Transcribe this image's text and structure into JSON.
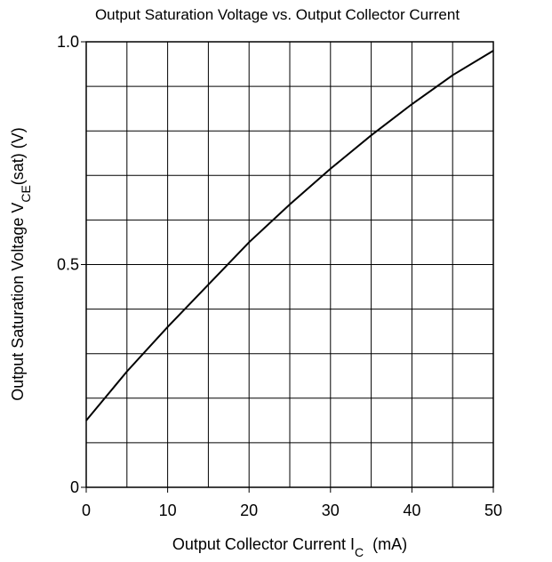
{
  "chart_data": {
    "type": "line",
    "title": "Output Saturation Voltage vs. Output Collector Current",
    "xlabel": {
      "text": "Output Collector Current  I",
      "sub": "C",
      "unit": "(mA)"
    },
    "ylabel": {
      "text": "Output Saturation Voltage  V",
      "sub": "CE",
      "unit": "(sat)  (V)"
    },
    "x": [
      0,
      5,
      10,
      15,
      20,
      25,
      30,
      35,
      40,
      45,
      50
    ],
    "series": [
      {
        "color": "#000000",
        "values": [
          0.15,
          0.26,
          0.36,
          0.455,
          0.55,
          0.635,
          0.715,
          0.79,
          0.86,
          0.925,
          0.98
        ]
      }
    ],
    "xlim": [
      0,
      50
    ],
    "ylim": [
      0,
      1
    ],
    "xticks": [
      0,
      10,
      20,
      30,
      40,
      50
    ],
    "yticks": [
      0,
      0.5,
      {
        "value": 1,
        "label": "1.0"
      }
    ],
    "xgrid": [
      5,
      10,
      15,
      20,
      25,
      30,
      35,
      40,
      45
    ],
    "ygrid": [
      0.1,
      0.2,
      0.3,
      0.4,
      0.5,
      0.6,
      0.7,
      0.8,
      0.9
    ],
    "grid": true
  }
}
